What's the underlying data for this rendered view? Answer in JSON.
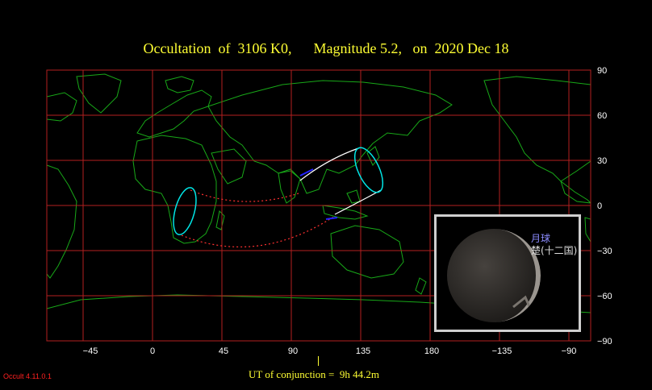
{
  "title": "Occultation  of  3106 K0,      Magnitude 5.2,   on  2020 Dec 18",
  "map": {
    "lat_ticks": [
      "90",
      "60",
      "30",
      "0",
      "−30",
      "−60",
      "−90"
    ],
    "lon_ticks": [
      "−45",
      "0",
      "45",
      "90",
      "135",
      "180",
      "−135",
      "−90"
    ]
  },
  "conjunction_text": "UT of conjunction =  9h 44.2m",
  "version": "Occult 4.11.0.1",
  "inset": {
    "object_label": "月球",
    "star_label": "楚(十二国)"
  },
  "colors": {
    "title": "#ffff33",
    "grid": "#b32020",
    "coast": "#18a818",
    "limit": "#00e5e5",
    "track": "#ffffff",
    "dashed": "#ff3030"
  }
}
